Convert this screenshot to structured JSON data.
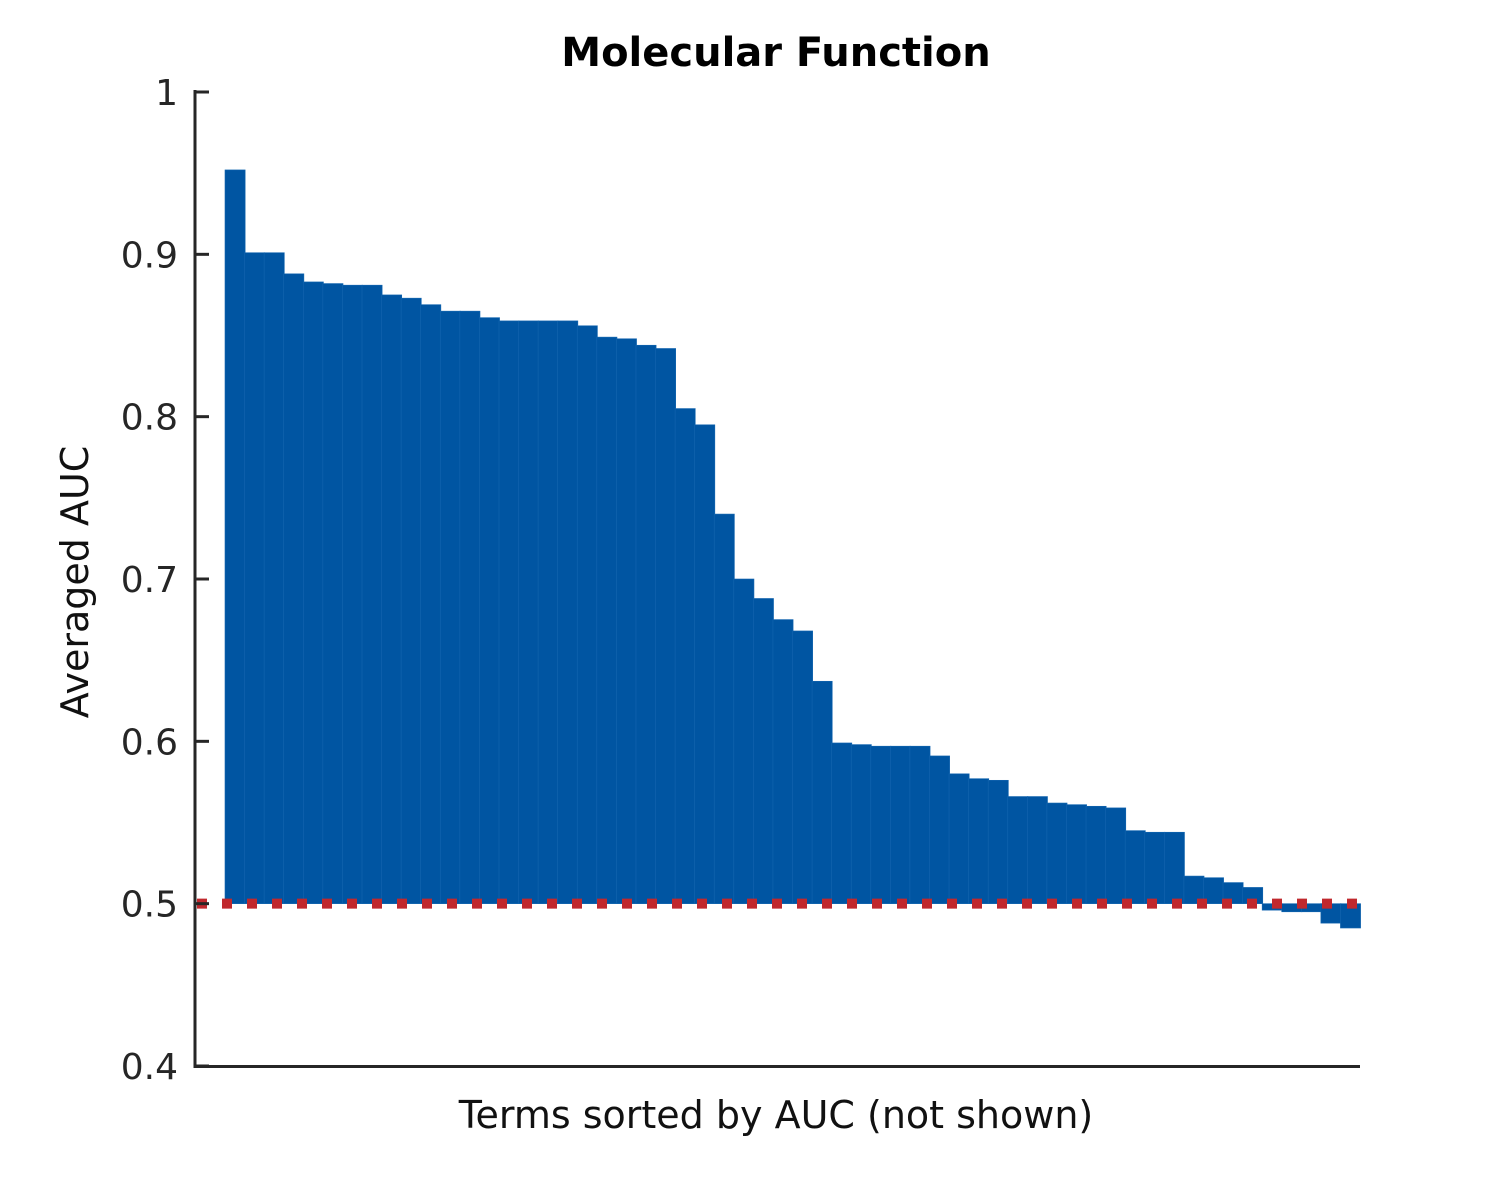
{
  "chart_data": {
    "type": "bar",
    "title": "Molecular Function",
    "xlabel": "Terms sorted by AUC (not shown)",
    "ylabel": "Averaged AUC",
    "ylim": [
      0.4,
      1.0
    ],
    "yticks": [
      {
        "value": 0.4,
        "label": "0.4"
      },
      {
        "value": 0.5,
        "label": "0.5"
      },
      {
        "value": 0.6,
        "label": "0.6"
      },
      {
        "value": 0.7,
        "label": "0.7"
      },
      {
        "value": 0.8,
        "label": "0.8"
      },
      {
        "value": 0.9,
        "label": "0.9"
      },
      {
        "value": 1.0,
        "label": "1"
      }
    ],
    "baseline": 0.5,
    "reference_line": {
      "value": 0.5,
      "style": "dotted",
      "color": "#c0282d"
    },
    "bar_color": "#0055a2",
    "grid": false,
    "values": [
      0.952,
      0.901,
      0.901,
      0.888,
      0.883,
      0.882,
      0.881,
      0.881,
      0.875,
      0.873,
      0.869,
      0.865,
      0.865,
      0.861,
      0.859,
      0.859,
      0.859,
      0.859,
      0.856,
      0.849,
      0.848,
      0.844,
      0.842,
      0.805,
      0.795,
      0.74,
      0.7,
      0.688,
      0.675,
      0.668,
      0.637,
      0.599,
      0.598,
      0.597,
      0.597,
      0.597,
      0.591,
      0.58,
      0.577,
      0.576,
      0.566,
      0.566,
      0.562,
      0.561,
      0.56,
      0.559,
      0.545,
      0.544,
      0.544,
      0.517,
      0.516,
      0.513,
      0.51,
      0.496,
      0.495,
      0.495,
      0.488,
      0.485
    ]
  }
}
